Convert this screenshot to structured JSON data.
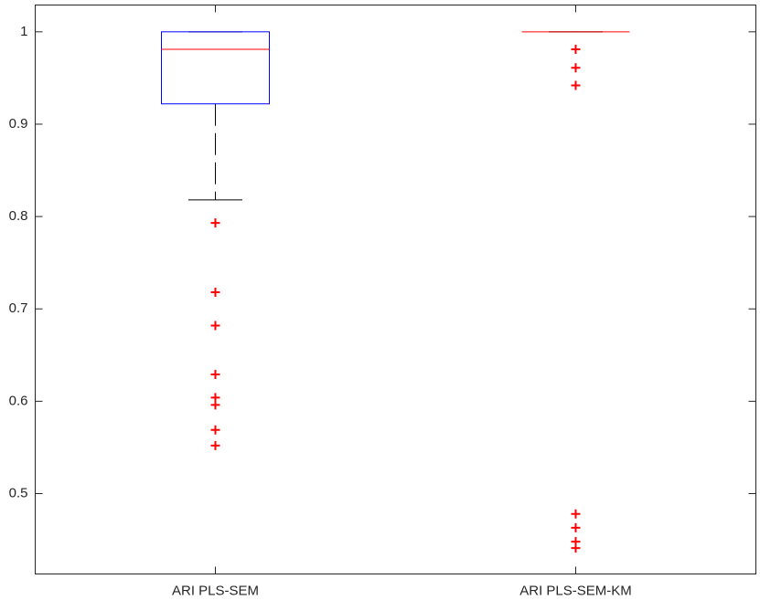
{
  "chart_data": {
    "type": "box",
    "categories": [
      "ARI PLS-SEM",
      "ARI PLS-SEM-KM"
    ],
    "boxes": [
      {
        "whisker_low": 0.818,
        "q1": 0.922,
        "median": 0.981,
        "q3": 1,
        "whisker_high": 1,
        "outliers": [
          0.793,
          0.718,
          0.682,
          0.629,
          0.604,
          0.596,
          0.569,
          0.552
        ]
      },
      {
        "whisker_low": 1,
        "q1": 1,
        "median": 1,
        "q3": 1,
        "whisker_high": 1,
        "outliers": [
          0.981,
          0.961,
          0.942,
          0.478,
          0.463,
          0.448,
          0.441
        ]
      }
    ],
    "box_color": "#0000ff",
    "median_color": "#ff0000",
    "whisker_color": "#000000",
    "outlier_color": "#ff0000",
    "ylim": [
      0.413,
      1.029
    ],
    "yticks": [
      0.5,
      0.6,
      0.7,
      0.8,
      0.9,
      1
    ]
  }
}
